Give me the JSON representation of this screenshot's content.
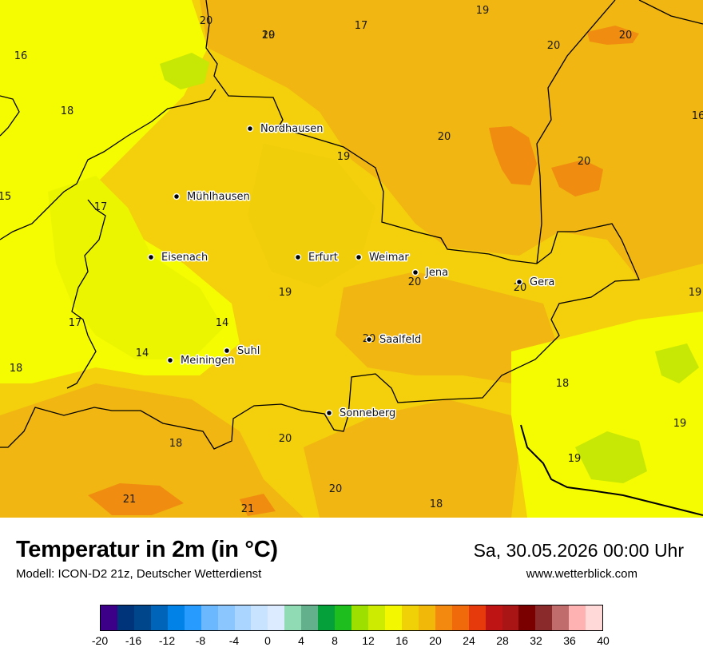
{
  "title": "Temperatur in 2m (in °C)",
  "subtitle": "Modell: ICON-D2 21z, Deutscher Wetterdienst",
  "datetime": "Sa, 30.05.2026 00:00 Uhr",
  "website": "www.wetterblick.com",
  "colors": {
    "base": "#f3cf0c",
    "t14": "#ecf500",
    "t15": "#f5fb00",
    "t18": "#f0ce0a",
    "t19": "#f2c20c",
    "t20": "#f1b611",
    "t21": "#f2a910",
    "t22": "#f08d10",
    "t12": "#c6e804",
    "border": "#000000"
  },
  "cities": [
    {
      "name": "Nordhausen"
    },
    {
      "name": "Mühlhausen"
    },
    {
      "name": "Eisenach"
    },
    {
      "name": "Erfurt"
    },
    {
      "name": "Weimar"
    },
    {
      "name": "Jena"
    },
    {
      "name": "Gera"
    },
    {
      "name": "Suhl"
    },
    {
      "name": "Meiningen"
    },
    {
      "name": "Saalfeld"
    },
    {
      "name": "Sonneberg"
    }
  ],
  "temperature_labels": [
    "20",
    "17",
    "19",
    "20",
    "20",
    "16",
    "18",
    "16",
    "20",
    "19",
    "20",
    "15",
    "17",
    "18",
    "19",
    "20",
    "20",
    "19",
    "17",
    "14",
    "14",
    "18",
    "20",
    "18",
    "19",
    "18",
    "20",
    "19",
    "18",
    "20",
    "21",
    "21",
    "20",
    "19"
  ],
  "legend": {
    "ticks": [
      "-20",
      "-16",
      "-12",
      "-8",
      "-4",
      "0",
      "4",
      "8",
      "12",
      "16",
      "20",
      "24",
      "28",
      "32",
      "36",
      "40"
    ],
    "colors": [
      "#3b0087",
      "#00347a",
      "#00468a",
      "#0064b8",
      "#0082e6",
      "#289bff",
      "#6bb8ff",
      "#8cc6ff",
      "#aad5ff",
      "#c8e3ff",
      "#dcebff",
      "#90dab4",
      "#62b08c",
      "#06a03a",
      "#1dbe1d",
      "#9de000",
      "#cceb00",
      "#f3f700",
      "#f0d107",
      "#f1b709",
      "#f3890e",
      "#f06a0c",
      "#e63a0c",
      "#bf1414",
      "#a91515",
      "#7a0000",
      "#8a2a2a",
      "#c06c6c",
      "#ffb2b2",
      "#ffd8d8"
    ]
  }
}
